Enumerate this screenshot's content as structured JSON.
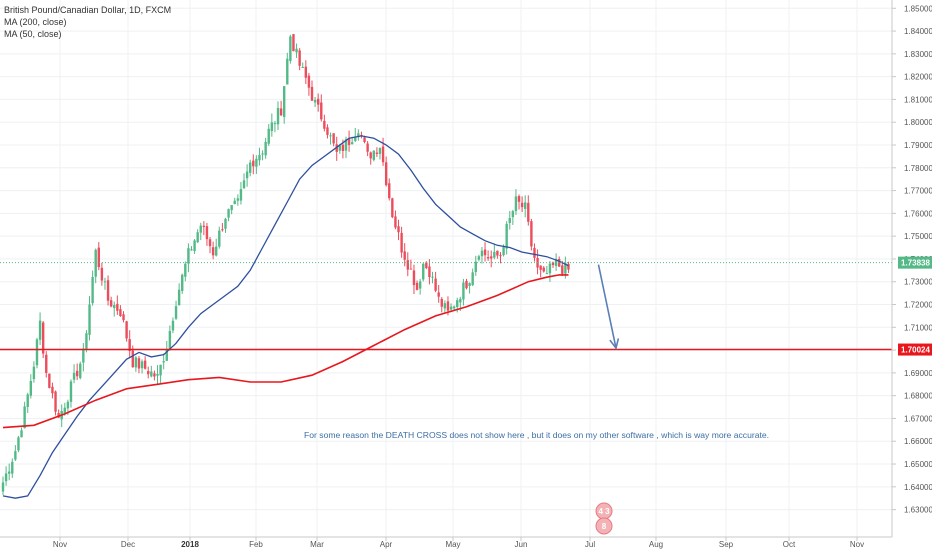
{
  "legend": {
    "symbol": "British Pound/Canadian Dollar, 1D, FXCM",
    "ma200": "MA (200, close)",
    "ma50": "MA (50, close)"
  },
  "colors": {
    "up": "#53b987",
    "down": "#eb4d5c",
    "ma50": "#2e4f9e",
    "ma200": "#e8161d",
    "priceLine": "#53b987",
    "levelLine": "#e8161d",
    "arrow": "#5a7fb6",
    "note": "#3d6fa3"
  },
  "chart_data": {
    "type": "line",
    "title": "British Pound/Canadian Dollar, 1D, FXCM",
    "xlabel": "",
    "ylabel": "",
    "ylim": [
      1.625,
      1.851
    ],
    "y_ticks": [
      "1.63000",
      "1.64000",
      "1.65000",
      "1.66000",
      "1.67000",
      "1.68000",
      "1.69000",
      "1.70000",
      "1.71000",
      "1.72000",
      "1.73000",
      "1.74000",
      "1.75000",
      "1.76000",
      "1.77000",
      "1.78000",
      "1.79000",
      "1.80000",
      "1.81000",
      "1.82000",
      "1.83000",
      "1.84000",
      "1.85000"
    ],
    "x_ticks": [
      "Nov",
      "Dec",
      "2018",
      "Feb",
      "Mar",
      "Apr",
      "May",
      "Jun",
      "Jul",
      "Aug",
      "Sep",
      "Oct",
      "Nov"
    ],
    "x_tick_index": [
      8,
      30,
      52,
      74,
      96,
      118,
      140,
      162,
      184,
      206,
      228,
      250,
      272
    ],
    "close_path": {
      "index": [
        0,
        4,
        7,
        10,
        12,
        14,
        18,
        21,
        26,
        30,
        34,
        38,
        42,
        46,
        50,
        53,
        56,
        60,
        64,
        68,
        72,
        76,
        80,
        84,
        86,
        90,
        93,
        96,
        98,
        101,
        104,
        108,
        112,
        115,
        118,
        122,
        126,
        129,
        132,
        134,
        136,
        138,
        141,
        144,
        148,
        151,
        154,
        158,
        161,
        163,
        166,
        169,
        171,
        173,
        175,
        177,
        179,
        181,
        183
      ],
      "close": [
        1.642,
        1.656,
        1.673,
        1.694,
        1.712,
        1.69,
        1.67,
        1.68,
        1.698,
        1.743,
        1.722,
        1.717,
        1.695,
        1.692,
        1.688,
        1.702,
        1.722,
        1.742,
        1.755,
        1.743,
        1.759,
        1.764,
        1.782,
        1.788,
        1.796,
        1.806,
        1.838,
        1.825,
        1.819,
        1.808,
        1.8,
        1.786,
        1.792,
        1.798,
        1.785,
        1.79,
        1.76,
        1.745,
        1.735,
        1.727,
        1.738,
        1.735,
        1.722,
        1.716,
        1.725,
        1.732,
        1.744,
        1.74,
        1.742,
        1.753,
        1.765,
        1.762,
        1.746,
        1.735,
        1.732,
        1.735,
        1.738,
        1.736,
        1.735
      ]
    },
    "series": [
      {
        "name": "MA (50, close)",
        "index": [
          0,
          4,
          8,
          12,
          16,
          20,
          24,
          28,
          32,
          36,
          40,
          44,
          48,
          52,
          56,
          60,
          64,
          68,
          72,
          76,
          80,
          84,
          88,
          92,
          96,
          100,
          104,
          108,
          112,
          116,
          120,
          124,
          128,
          132,
          136,
          140,
          144,
          148,
          152,
          156,
          160,
          164,
          168,
          172,
          176,
          180,
          183
        ],
        "values": [
          1.636,
          1.635,
          1.636,
          1.645,
          1.655,
          1.663,
          1.671,
          1.678,
          1.684,
          1.69,
          1.696,
          1.699,
          1.697,
          1.698,
          1.703,
          1.71,
          1.716,
          1.72,
          1.724,
          1.728,
          1.735,
          1.745,
          1.755,
          1.765,
          1.775,
          1.781,
          1.785,
          1.789,
          1.793,
          1.794,
          1.793,
          1.79,
          1.786,
          1.779,
          1.771,
          1.764,
          1.759,
          1.754,
          1.751,
          1.748,
          1.746,
          1.745,
          1.743,
          1.742,
          1.741,
          1.739,
          1.737
        ]
      },
      {
        "name": "MA (200, close)",
        "index": [
          0,
          10,
          20,
          30,
          40,
          50,
          60,
          70,
          80,
          90,
          100,
          110,
          120,
          130,
          140,
          150,
          160,
          170,
          176,
          180,
          183
        ],
        "values": [
          1.666,
          1.667,
          1.672,
          1.678,
          1.683,
          1.685,
          1.687,
          1.688,
          1.686,
          1.686,
          1.689,
          1.695,
          1.702,
          1.709,
          1.715,
          1.719,
          1.724,
          1.73,
          1.732,
          1.733,
          1.733
        ]
      }
    ],
    "price_line": {
      "value": 1.73838,
      "label": "1.73838"
    },
    "horizontal_line": {
      "value": 1.70024,
      "label": "1.70024"
    },
    "arrow": {
      "from": {
        "index": 183,
        "value": 1.7375
      },
      "to": {
        "index": 188,
        "value": 1.7
      }
    },
    "annotation": "For some reason the DEATH CROSS does not show here , but it does on my other software , which is way more accurate.",
    "grid": true,
    "legend_position": "top-left"
  },
  "badges": {
    "top": "4 3",
    "bottom": "8"
  }
}
